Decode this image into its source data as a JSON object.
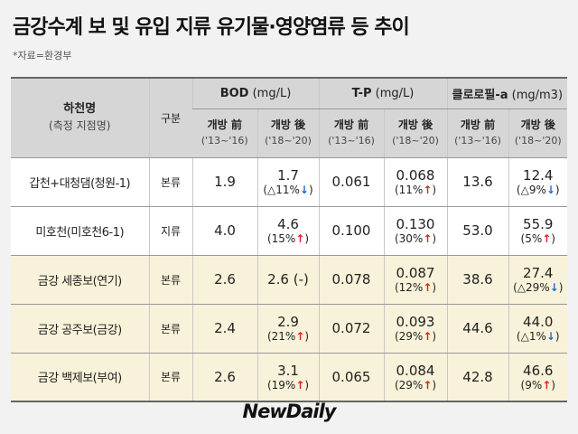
{
  "header": {
    "title": "금강수계 보 및 유입 지류 유기물·영양염류 등 추이",
    "source": "*자료=환경부"
  },
  "table": {
    "name_header": {
      "label": "하천명",
      "sub": "(측정 지점명)"
    },
    "type_header": "구분",
    "groups": [
      {
        "name": "BOD",
        "unit": "(mg/L)",
        "before": {
          "label": "개방 前",
          "period": "('13~'16)"
        },
        "after": {
          "label": "개방 後",
          "period": "('18~'20)"
        }
      },
      {
        "name": "T-P",
        "unit": "(mg/L)",
        "before": {
          "label": "개방 前",
          "period": "('13~'16)"
        },
        "after": {
          "label": "개방 後",
          "period": "('18~'20)"
        }
      },
      {
        "name": "클로로필-a",
        "unit": "(mg/m3)",
        "before": {
          "label": "개방 前",
          "period": "('13~'16)"
        },
        "after": {
          "label": "개방 後",
          "period": "('18~'20)"
        }
      }
    ],
    "rows": [
      {
        "name": "갑천+대청댐(청원-1)",
        "type": "본류",
        "cells": [
          {
            "before": "1.9",
            "after": "1.7",
            "change": "(△11%↓)"
          },
          {
            "before": "0.061",
            "after": "0.068",
            "change": "(11%↑)"
          },
          {
            "before": "13.6",
            "after": "12.4",
            "change": "(△9%↓)"
          }
        ]
      },
      {
        "name": "미호천(미호천6-1)",
        "type": "지류",
        "cells": [
          {
            "before": "4.0",
            "after": "4.6",
            "change": "(15%↑)"
          },
          {
            "before": "0.100",
            "after": "0.130",
            "change": "(30%↑)"
          },
          {
            "before": "53.0",
            "after": "55.9",
            "change": "(5%↑)"
          }
        ]
      },
      {
        "name": "금강 세종보(연기)",
        "type": "본류",
        "cells": [
          {
            "before": "2.6",
            "after": "2.6 (-)"
          },
          {
            "before": "0.078",
            "after": "0.087",
            "change": "(12%↑)"
          },
          {
            "before": "38.6",
            "after": "27.4",
            "change": "(△29%↓)"
          }
        ]
      },
      {
        "name": "금강 공주보(금강)",
        "type": "본류",
        "cells": [
          {
            "before": "2.4",
            "after": "2.9",
            "change": "(21%↑)"
          },
          {
            "before": "0.072",
            "after": "0.093",
            "change": "(29%↑)"
          },
          {
            "before": "44.6",
            "after": "44.0",
            "change": "(△1%↓)"
          }
        ]
      },
      {
        "name": "금강 백제보(부여)",
        "type": "본류",
        "cells": [
          {
            "before": "2.6",
            "after": "3.1",
            "change": "(19%↑)"
          },
          {
            "before": "0.065",
            "after": "0.084",
            "change": "(29%↑)"
          },
          {
            "before": "42.8",
            "after": "46.6",
            "change": "(9%↑)"
          }
        ]
      }
    ]
  },
  "footer": {
    "logo": "NewDaily"
  }
}
